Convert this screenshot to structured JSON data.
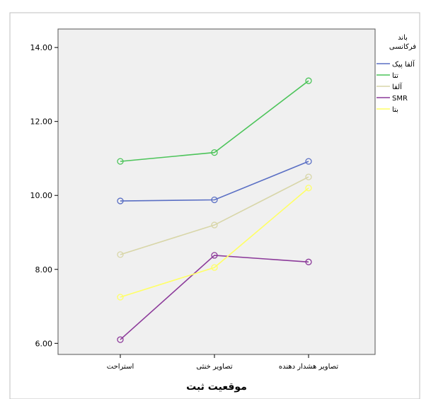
{
  "chart_data": {
    "type": "line",
    "categories": [
      "استراحت",
      "تصاویر خنثی",
      "تصاویر هشدار دهنده"
    ],
    "xlabel": "موقعیت ثبت",
    "ylabel": "",
    "ylim": [
      5.7,
      14.5
    ],
    "yticks": [
      "6.00",
      "8.00",
      "10.00",
      "12.00",
      "14.00"
    ],
    "grid": false,
    "legend": {
      "title_lines": [
        "باند",
        "فرکانسی"
      ],
      "placement": "right"
    },
    "series": [
      {
        "name": "آلفا پیک",
        "color": "#5a6fc4",
        "values": [
          9.85,
          9.88,
          10.92
        ]
      },
      {
        "name": "تتا",
        "color": "#4cc45a",
        "values": [
          10.92,
          11.16,
          13.1
        ]
      },
      {
        "name": "آلفا",
        "color": "#d8d6a8",
        "values": [
          8.4,
          9.2,
          10.5
        ]
      },
      {
        "name": "SMR",
        "color": "#8c3a9a",
        "values": [
          6.1,
          8.38,
          8.2
        ]
      },
      {
        "name": "بتا",
        "color": "#ffff66",
        "values": [
          7.25,
          8.05,
          10.2
        ]
      }
    ]
  }
}
